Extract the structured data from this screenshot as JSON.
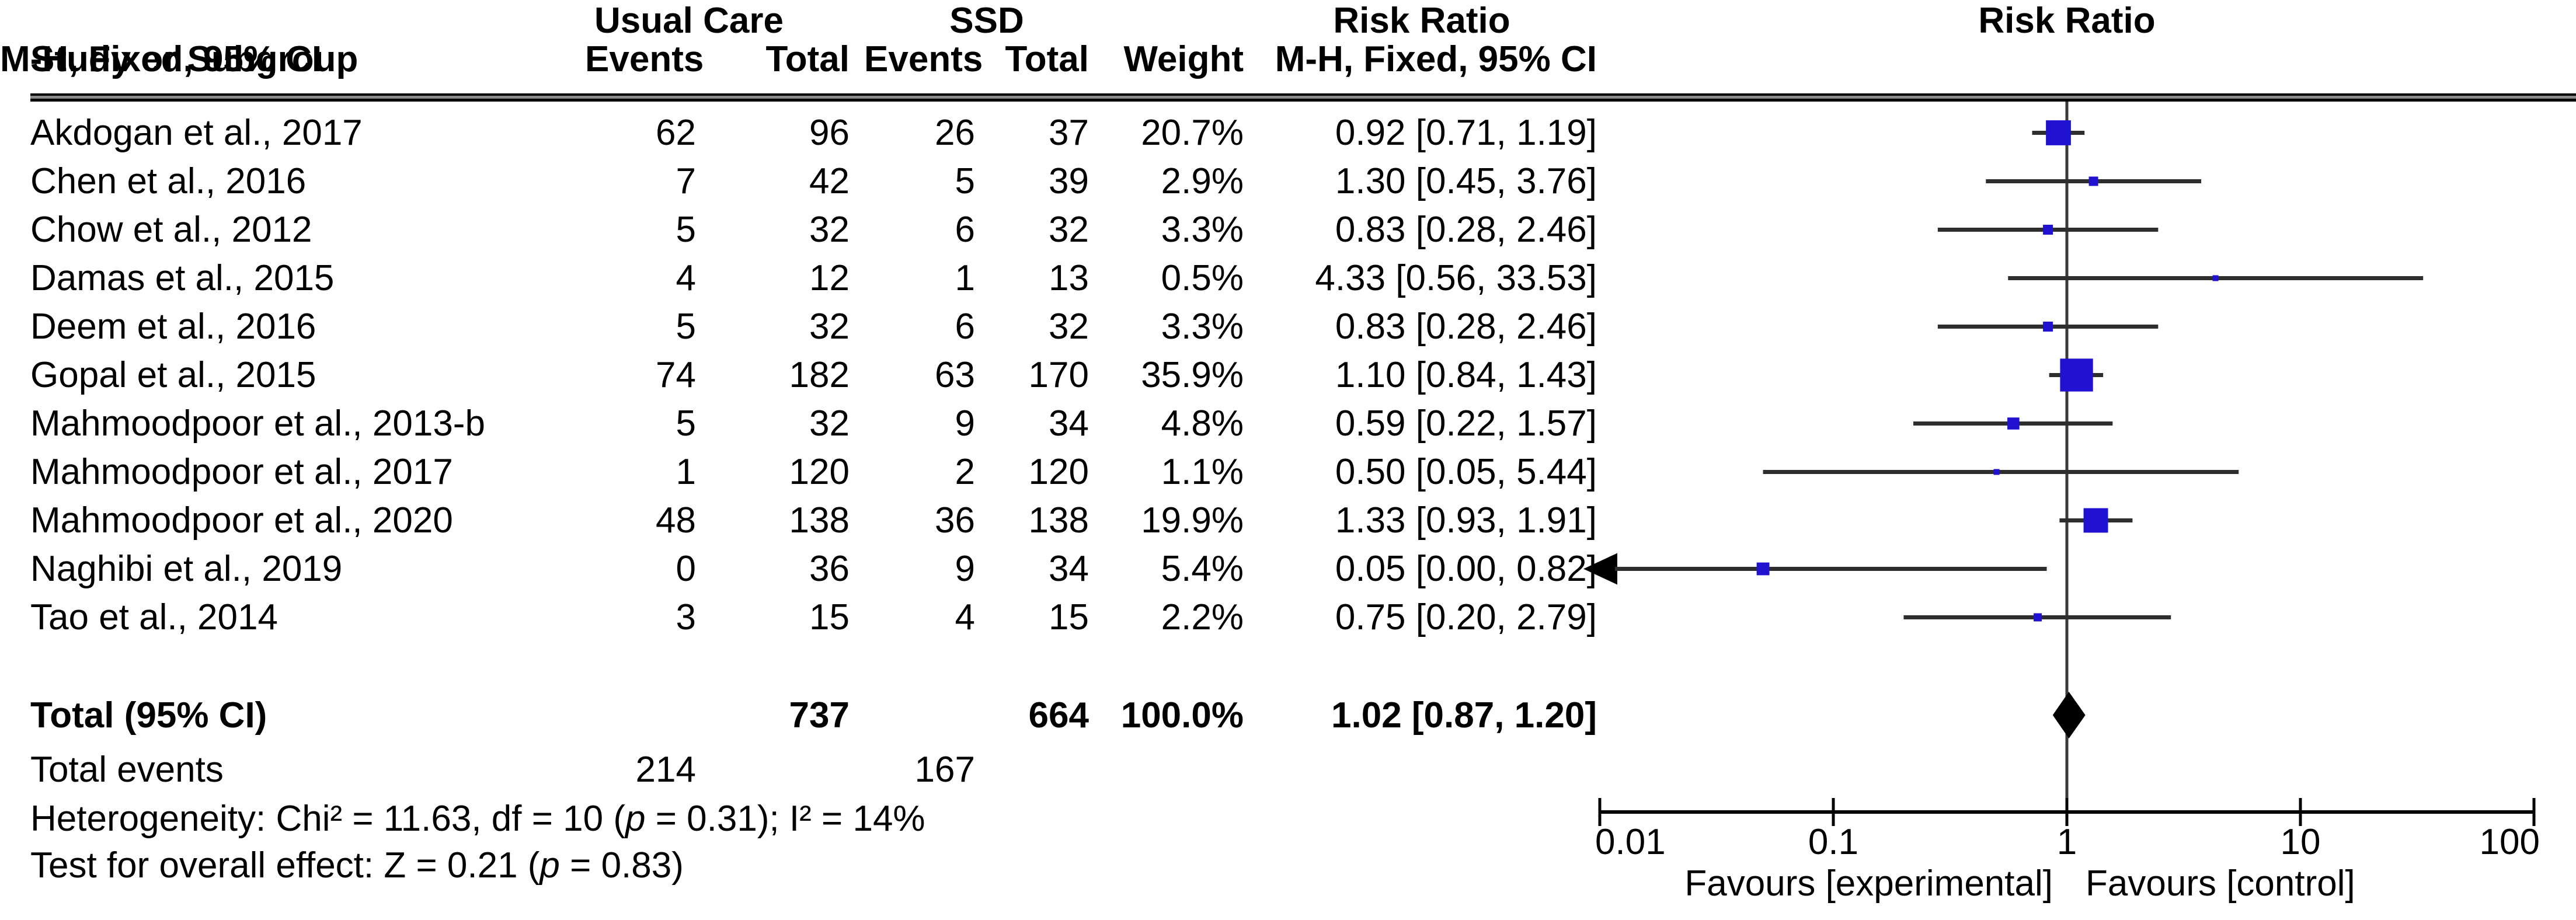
{
  "header": {
    "study_col": "Study or Subgroup",
    "group1_name": "Usual Care",
    "group2_name": "SSD",
    "events_col": "Events",
    "total_col": "Total",
    "weight_col": "Weight",
    "effect_col_line1": "Risk Ratio",
    "effect_col_line2": "M-H, Fixed, 95% CI",
    "plot_col_line1": "Risk Ratio",
    "plot_col_line2": "M-H, Fixed, 95% CI"
  },
  "totals": {
    "label": "Total (95% CI)",
    "uc_total": "737",
    "ssd_total": "664",
    "weight": "100.0%",
    "ci_text": "1.02 [0.87, 1.20]",
    "events_label": "Total events",
    "uc_events": "214",
    "ssd_events": "167"
  },
  "footer": {
    "heterogeneity_pre": "Heterogeneity: Chi² = 11.63, df = 10 (",
    "p_label": "p",
    "heterogeneity_post": " = 0.31); I² = 14%",
    "overall_pre": "Test for overall effect: Z = 0.21 (",
    "overall_post": " = 0.83)"
  },
  "axis": {
    "tick_labels": [
      "0.01",
      "0.1",
      "1",
      "10",
      "100"
    ],
    "favours_left": "Favours [experimental]",
    "favours_right": "Favours [control]"
  },
  "colors": {
    "square": "#2012D0",
    "diamond": "#000000",
    "ci_line": "#2E2E2E",
    "center_line": "#3A3A3A",
    "axis_line": "#000000",
    "text": "#000000"
  },
  "chart_data": {
    "type": "forest",
    "effect_measure": "Risk Ratio",
    "method": "M-H, Fixed, 95% CI",
    "x_scale": "log",
    "x_ticks": [
      0.01,
      0.1,
      1,
      10,
      100
    ],
    "x_range": [
      0.01,
      100
    ],
    "null_line": 1,
    "studies": [
      {
        "name": "Akdogan et al., 2017",
        "uc_events": 62,
        "uc_total": 96,
        "ssd_events": 26,
        "ssd_total": 37,
        "weight_pct": 20.7,
        "rr": 0.92,
        "ci_low": 0.71,
        "ci_high": 1.19
      },
      {
        "name": "Chen et al., 2016",
        "uc_events": 7,
        "uc_total": 42,
        "ssd_events": 5,
        "ssd_total": 39,
        "weight_pct": 2.9,
        "rr": 1.3,
        "ci_low": 0.45,
        "ci_high": 3.76
      },
      {
        "name": "Chow et al., 2012",
        "uc_events": 5,
        "uc_total": 32,
        "ssd_events": 6,
        "ssd_total": 32,
        "weight_pct": 3.3,
        "rr": 0.83,
        "ci_low": 0.28,
        "ci_high": 2.46
      },
      {
        "name": "Damas et al., 2015",
        "uc_events": 4,
        "uc_total": 12,
        "ssd_events": 1,
        "ssd_total": 13,
        "weight_pct": 0.5,
        "rr": 4.33,
        "ci_low": 0.56,
        "ci_high": 33.53
      },
      {
        "name": "Deem et al., 2016",
        "uc_events": 5,
        "uc_total": 32,
        "ssd_events": 6,
        "ssd_total": 32,
        "weight_pct": 3.3,
        "rr": 0.83,
        "ci_low": 0.28,
        "ci_high": 2.46
      },
      {
        "name": "Gopal et al., 2015",
        "uc_events": 74,
        "uc_total": 182,
        "ssd_events": 63,
        "ssd_total": 170,
        "weight_pct": 35.9,
        "rr": 1.1,
        "ci_low": 0.84,
        "ci_high": 1.43
      },
      {
        "name": "Mahmoodpoor et al., 2013-b",
        "uc_events": 5,
        "uc_total": 32,
        "ssd_events": 9,
        "ssd_total": 34,
        "weight_pct": 4.8,
        "rr": 0.59,
        "ci_low": 0.22,
        "ci_high": 1.57
      },
      {
        "name": "Mahmoodpoor et al., 2017",
        "uc_events": 1,
        "uc_total": 120,
        "ssd_events": 2,
        "ssd_total": 120,
        "weight_pct": 1.1,
        "rr": 0.5,
        "ci_low": 0.05,
        "ci_high": 5.44
      },
      {
        "name": "Mahmoodpoor et al., 2020",
        "uc_events": 48,
        "uc_total": 138,
        "ssd_events": 36,
        "ssd_total": 138,
        "weight_pct": 19.9,
        "rr": 1.33,
        "ci_low": 0.93,
        "ci_high": 1.91
      },
      {
        "name": "Naghibi et al., 2019",
        "uc_events": 0,
        "uc_total": 36,
        "ssd_events": 9,
        "ssd_total": 34,
        "weight_pct": 5.4,
        "rr": 0.05,
        "ci_low": 0.0,
        "ci_high": 0.82,
        "low_clipped": true
      },
      {
        "name": "Tao et al., 2014",
        "uc_events": 3,
        "uc_total": 15,
        "ssd_events": 4,
        "ssd_total": 15,
        "weight_pct": 2.2,
        "rr": 0.75,
        "ci_low": 0.2,
        "ci_high": 2.79
      }
    ],
    "total": {
      "label": "Total (95% CI)",
      "uc_total": 737,
      "ssd_total": 664,
      "weight_pct": 100.0,
      "rr": 1.02,
      "ci_low": 0.87,
      "ci_high": 1.2
    },
    "total_events": {
      "usual_care": 214,
      "ssd": 167
    },
    "heterogeneity": {
      "chi2": 11.63,
      "df": 10,
      "p": 0.31,
      "i2_pct": 14
    },
    "overall_effect": {
      "z": 0.21,
      "p": 0.83
    },
    "favours": [
      "Favours [experimental]",
      "Favours [control]"
    ]
  }
}
